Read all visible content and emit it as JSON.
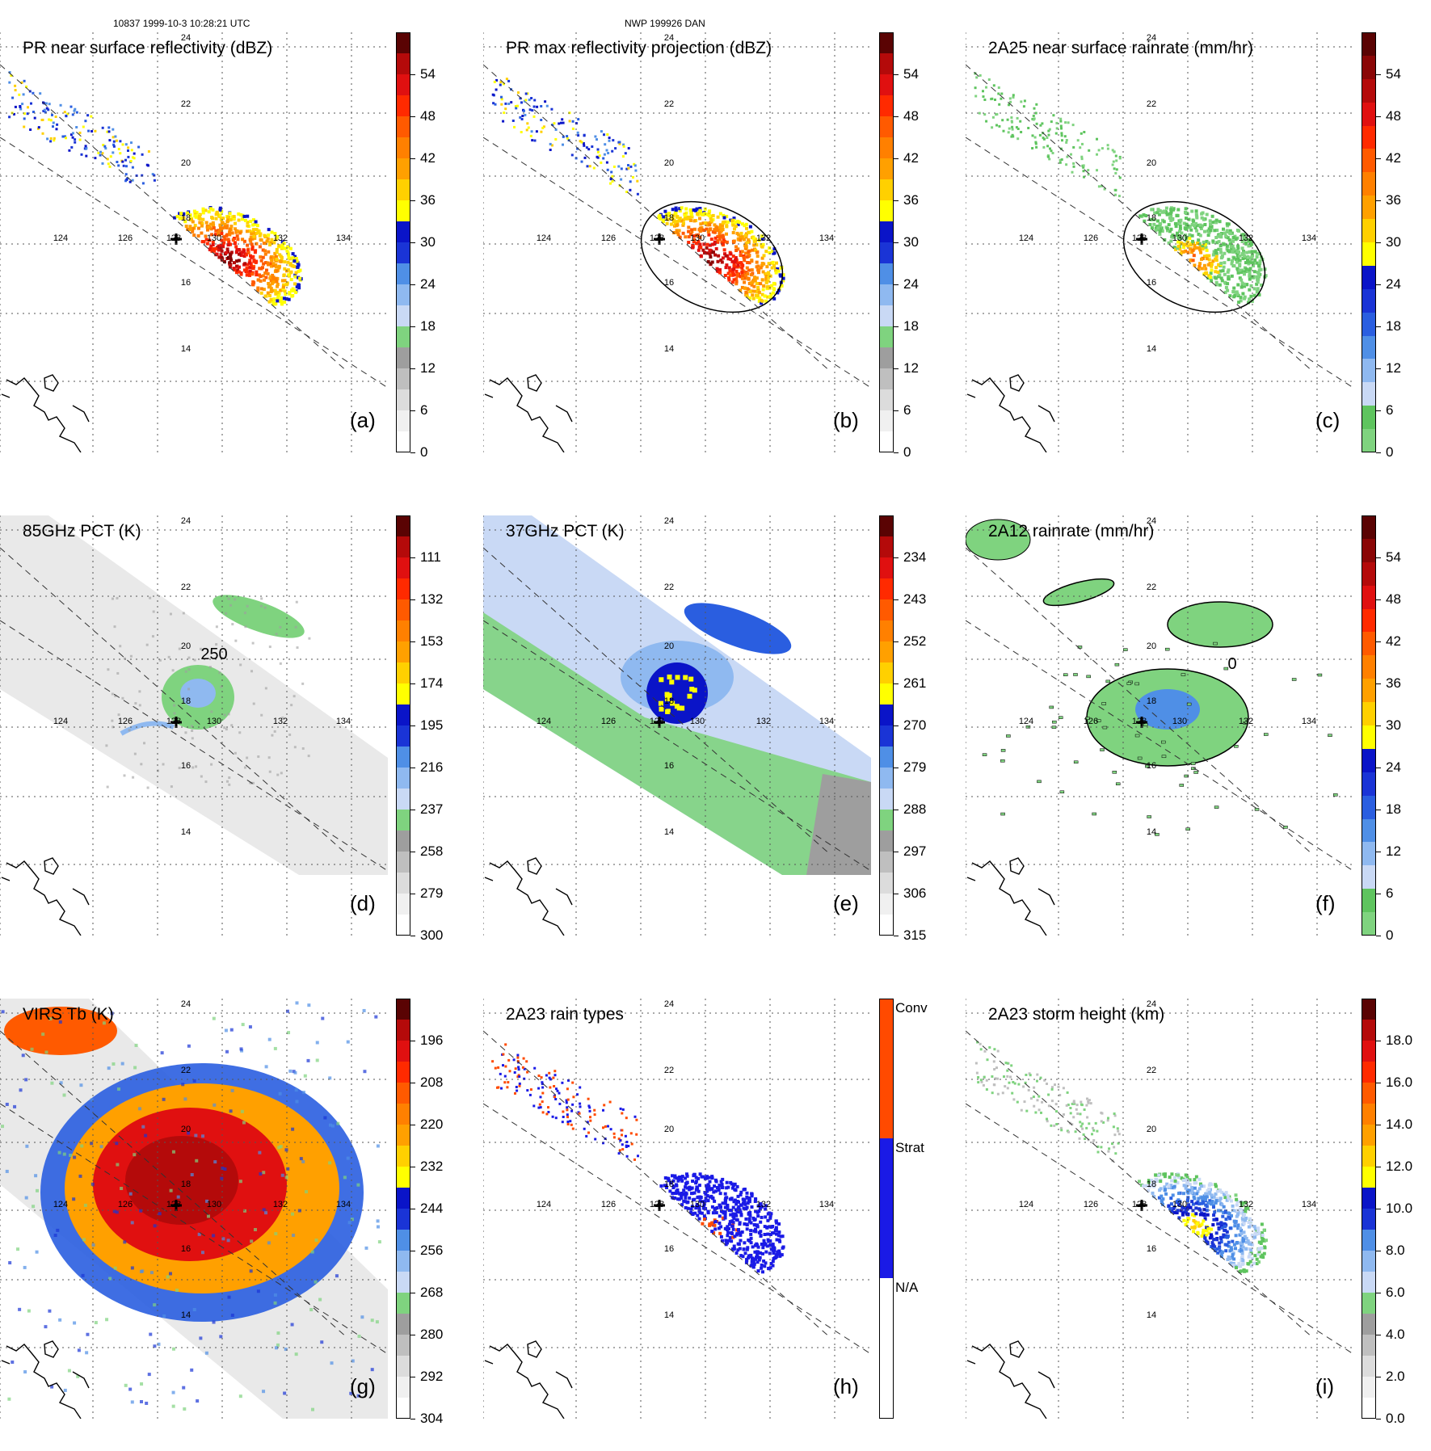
{
  "header": {
    "orbit_info": "10837 1999-10-3 10:28:21 UTC",
    "storm_info": "NWP 199926 DAN"
  },
  "map": {
    "lon_labels": [
      "124",
      "126",
      "128",
      "130",
      "132",
      "134"
    ],
    "lat_labels": [
      "24",
      "22",
      "20",
      "18",
      "16",
      "14"
    ]
  },
  "panels": [
    {
      "title": "PR near surface reflectivity (dBZ)",
      "label": "(a)",
      "colorbar": "dbz",
      "field": "pr_dbz",
      "ticks": [
        "54",
        "48",
        "42",
        "36",
        "30",
        "24",
        "18",
        "12",
        "6",
        "0"
      ]
    },
    {
      "title": "PR max reflectivity projection (dBZ)",
      "label": "(b)",
      "colorbar": "dbz",
      "field": "pr_max",
      "ticks": [
        "54",
        "48",
        "42",
        "36",
        "30",
        "24",
        "18",
        "12",
        "6",
        "0"
      ]
    },
    {
      "title": "2A25 near surface rainrate (mm/hr)",
      "label": "(c)",
      "colorbar": "rain",
      "field": "rain25",
      "ticks": [
        "54",
        "48",
        "42",
        "36",
        "30",
        "24",
        "18",
        "12",
        "6",
        "0"
      ]
    },
    {
      "title": "85GHz PCT (K)",
      "label": "(d)",
      "colorbar": "pct85",
      "field": "pct85",
      "contour_label": "250",
      "ticks": [
        "111",
        "132",
        "153",
        "174",
        "195",
        "216",
        "237",
        "258",
        "279",
        "300"
      ]
    },
    {
      "title": "37GHz PCT (K)",
      "label": "(e)",
      "colorbar": "pct37",
      "field": "pct37",
      "ticks": [
        "234",
        "243",
        "252",
        "261",
        "270",
        "279",
        "288",
        "297",
        "306",
        "315"
      ]
    },
    {
      "title": "2A12 rainrate (mm/hr)",
      "label": "(f)",
      "colorbar": "rain",
      "field": "rain12",
      "contour_label": "0",
      "ticks": [
        "54",
        "48",
        "42",
        "36",
        "30",
        "24",
        "18",
        "12",
        "6",
        "0"
      ]
    },
    {
      "title": "VIRS Tb (K)",
      "label": "(g)",
      "colorbar": "virs",
      "field": "virs",
      "ticks": [
        "196",
        "208",
        "220",
        "232",
        "244",
        "256",
        "268",
        "280",
        "292",
        "304"
      ]
    },
    {
      "title": "2A23 rain types",
      "label": "(h)",
      "colorbar": "types",
      "field": "types",
      "ticks": [
        "Conv",
        "Strat",
        "N/A"
      ]
    },
    {
      "title": "2A23 storm height (km)",
      "label": "(i)",
      "colorbar": "height",
      "field": "height",
      "ticks": [
        "18.0",
        "16.0",
        "14.0",
        "12.0",
        "10.0",
        "8.0",
        "6.0",
        "4.0",
        "2.0",
        "0.0"
      ]
    }
  ],
  "colors": {
    "palette_dbz": [
      "#ffffff",
      "#f2f2f2",
      "#dcdcdc",
      "#bfbfbf",
      "#9e9e9e",
      "#7fd37f",
      "#5ec45e",
      "#c9d9f5",
      "#8fb9f0",
      "#4f8fe6",
      "#2a5ee0",
      "#1a34d6",
      "#0a14c8",
      "#ffff00",
      "#ffd000",
      "#ffa000",
      "#ff8000",
      "#ff5a00",
      "#ff2a00",
      "#e01010",
      "#b40a0a",
      "#8a0606",
      "#5a0303"
    ],
    "palette_rain": [
      "#7fd37f",
      "#5ec45e",
      "#c9d9f5",
      "#8fb9f0",
      "#4f8fe6",
      "#2a5ee0",
      "#1a34d6",
      "#0a14c8",
      "#ffff00",
      "#ffd000",
      "#ffa000",
      "#ff8000",
      "#ff5a00",
      "#ff2a00",
      "#e01010",
      "#b40a0a",
      "#8a0606",
      "#5a0303"
    ],
    "types_conv": "#ff4a00",
    "types_strat": "#1a1ae6",
    "storm_center": "#000000"
  }
}
